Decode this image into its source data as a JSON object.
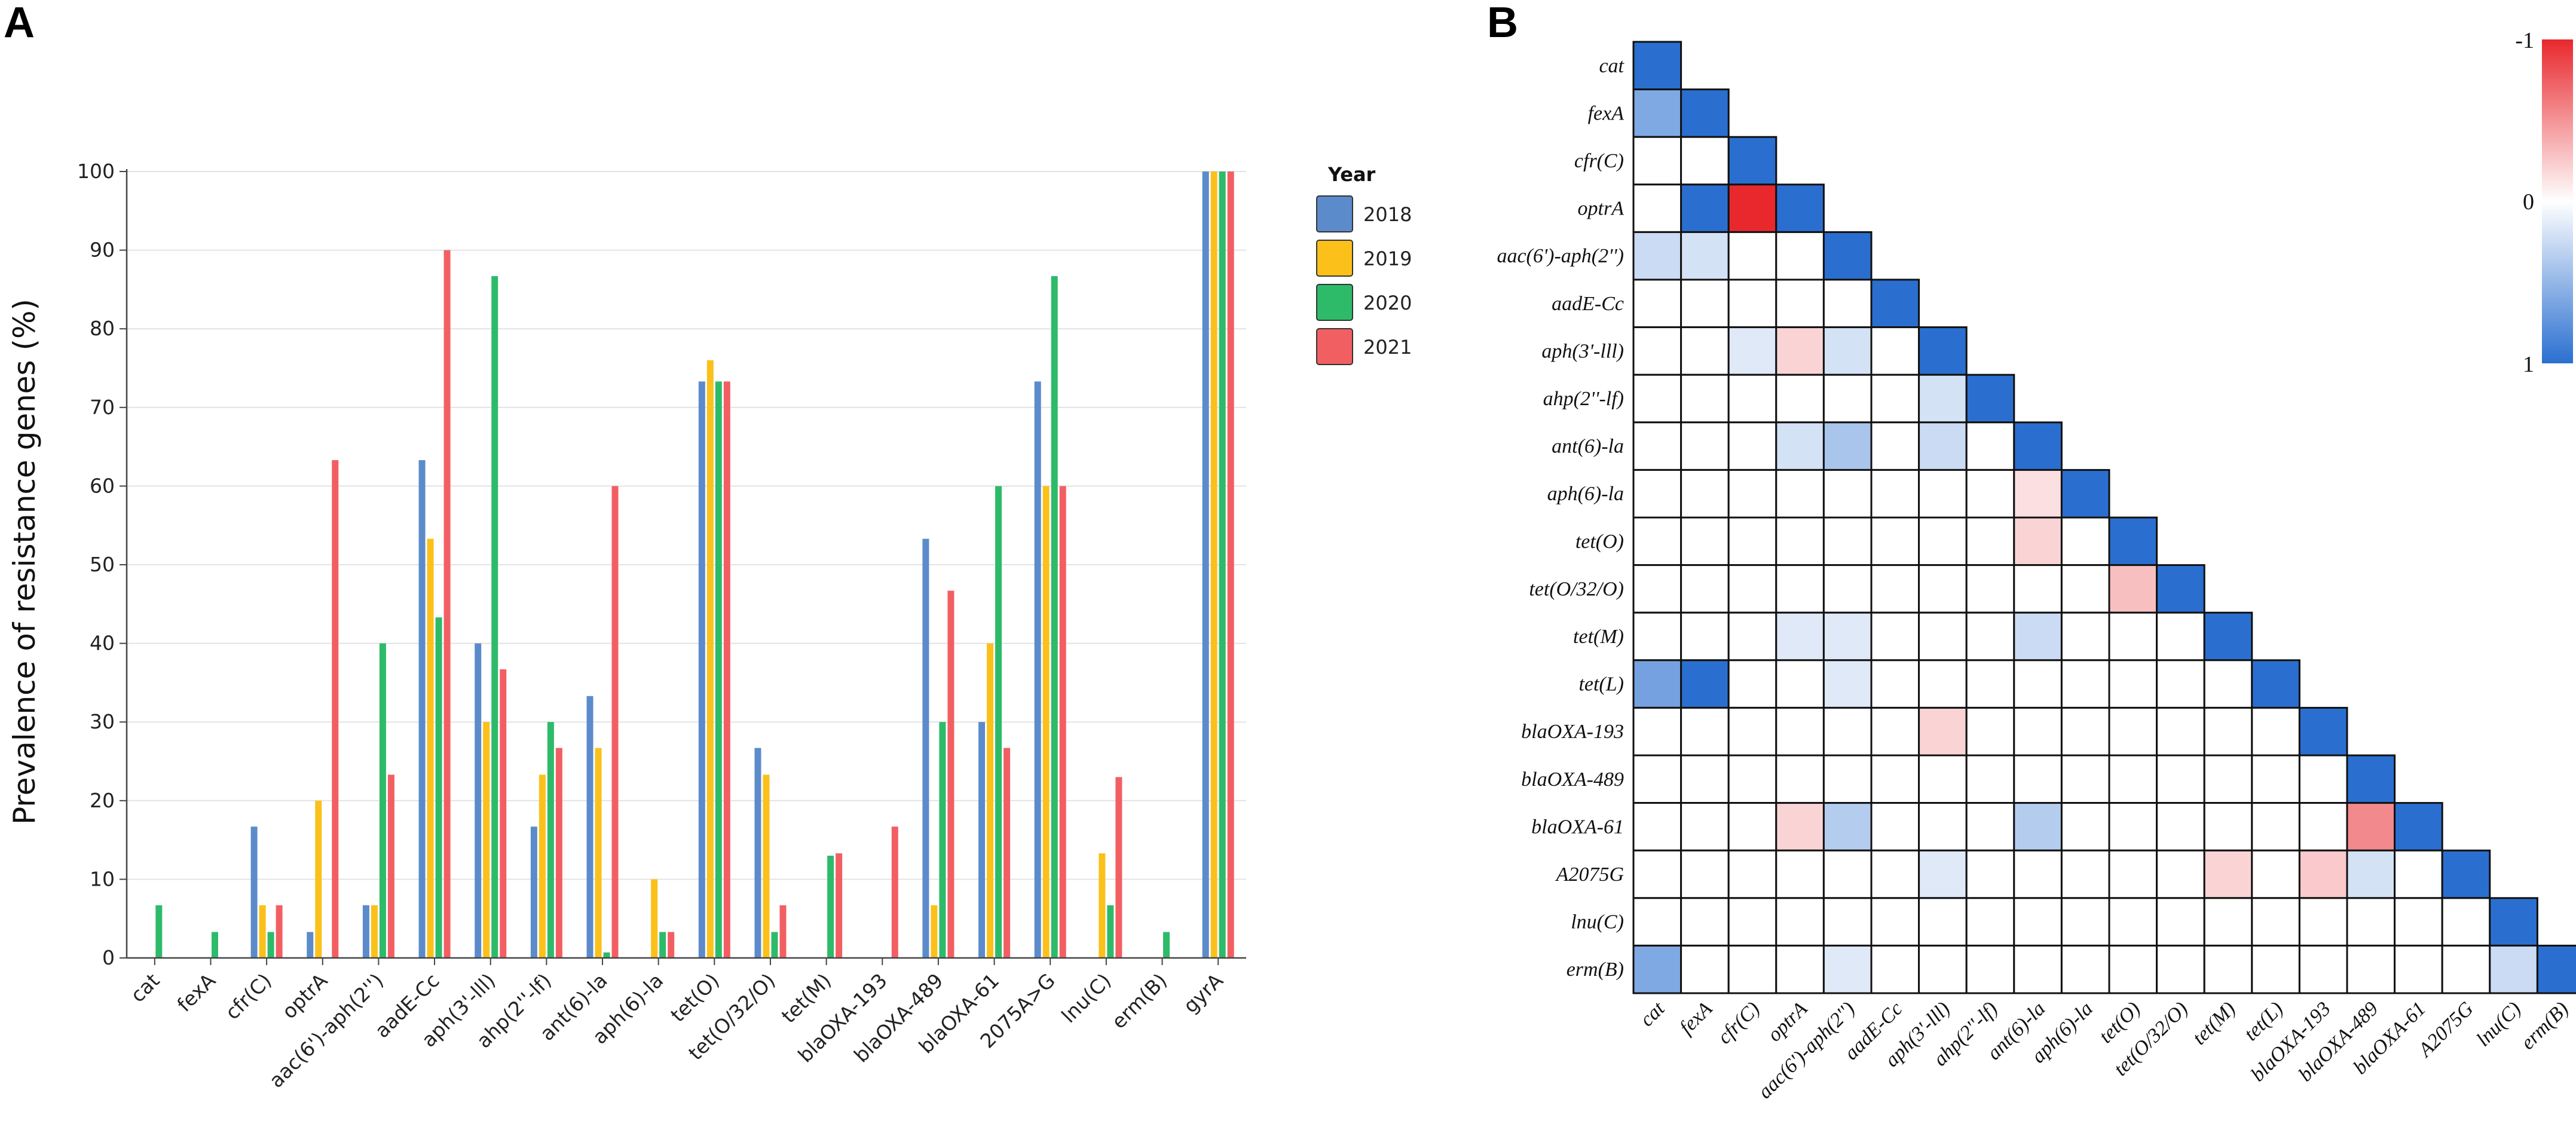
{
  "panelA": {
    "label": "A",
    "chart_data": {
      "type": "bar",
      "title": "",
      "xlabel": "",
      "ylabel": "Prevalence of resistance genes (%)",
      "ylim": [
        0,
        100
      ],
      "yticks": [
        0,
        10,
        20,
        30,
        40,
        50,
        60,
        70,
        80,
        90,
        100
      ],
      "grid": true,
      "legend_title": "Year",
      "legend_position": "right",
      "categories": [
        "cat",
        "fexA",
        "cfr(C)",
        "optrA",
        "aac(6')-aph(2'')",
        "aadE-Cc",
        "aph(3'-lll)",
        "ahp(2''-lf)",
        "ant(6)-la",
        "aph(6)-la",
        "tet(O)",
        "tet(O/32/O)",
        "tet(M)",
        "blaOXA-193",
        "blaOXA-489",
        "blaOXA-61",
        "2075A>G",
        "lnu(C)",
        "erm(B)",
        "gyrA"
      ],
      "series": [
        {
          "name": "2018",
          "color": "#5b8bcb",
          "values": [
            0,
            0,
            16.7,
            3.3,
            6.7,
            63.3,
            40,
            16.7,
            33.3,
            0,
            73.3,
            26.7,
            0,
            0,
            53.3,
            30,
            73.3,
            0,
            0,
            100
          ]
        },
        {
          "name": "2019",
          "color": "#fbc01a",
          "values": [
            0,
            0,
            6.7,
            20,
            6.7,
            53.3,
            30,
            23.3,
            26.7,
            10,
            76,
            23.3,
            0,
            0,
            6.7,
            40,
            60,
            13.3,
            0,
            100
          ]
        },
        {
          "name": "2020",
          "color": "#2dbb6a",
          "values": [
            6.7,
            3.3,
            3.3,
            0,
            40,
            43.3,
            86.7,
            30,
            0.7,
            3.3,
            73.3,
            3.3,
            13,
            0,
            30,
            60,
            86.7,
            6.7,
            3.3,
            100
          ]
        },
        {
          "name": "2021",
          "color": "#f25f63",
          "values": [
            0,
            0,
            6.7,
            63.3,
            23.3,
            90,
            36.7,
            26.7,
            60,
            3.3,
            73.3,
            6.7,
            13.3,
            16.7,
            46.7,
            26.7,
            60,
            23,
            0,
            100
          ]
        }
      ]
    }
  },
  "panelB": {
    "label": "B",
    "chart_data": {
      "type": "heatmap",
      "title": "",
      "shape": "lower-triangular correlation matrix",
      "labels": [
        "cat",
        "fexA",
        "cfr(C)",
        "optrA",
        "aac(6')-aph(2'')",
        "aadE-Cc",
        "aph(3'-lll)",
        "ahp(2''-lf)",
        "ant(6)-la",
        "aph(6)-la",
        "tet(O)",
        "tet(O/32/O)",
        "tet(M)",
        "tet(L)",
        "blaOXA-193",
        "blaOXA-489",
        "blaOXA-61",
        "A2075G",
        "lnu(C)",
        "erm(B)"
      ],
      "colorbar": {
        "min_label": "-1",
        "mid_label": "0",
        "max_label": "1",
        "top_color": "#e8282d",
        "mid_color": "#ffffff",
        "bottom_color": "#2a6fd0"
      },
      "cells": [
        {
          "row": 0,
          "col": 0,
          "value": 1
        },
        {
          "row": 1,
          "col": 0,
          "value": 0.6
        },
        {
          "row": 1,
          "col": 1,
          "value": 1
        },
        {
          "row": 2,
          "col": 2,
          "value": 1
        },
        {
          "row": 3,
          "col": 1,
          "value": 1
        },
        {
          "row": 3,
          "col": 2,
          "value": -1
        },
        {
          "row": 3,
          "col": 3,
          "value": 1
        },
        {
          "row": 4,
          "col": 0,
          "value": 0.25
        },
        {
          "row": 4,
          "col": 1,
          "value": 0.2
        },
        {
          "row": 4,
          "col": 4,
          "value": 1
        },
        {
          "row": 5,
          "col": 5,
          "value": 1
        },
        {
          "row": 6,
          "col": 2,
          "value": 0.15
        },
        {
          "row": 6,
          "col": 3,
          "value": -0.2
        },
        {
          "row": 6,
          "col": 4,
          "value": 0.2
        },
        {
          "row": 6,
          "col": 6,
          "value": 1
        },
        {
          "row": 7,
          "col": 6,
          "value": 0.2
        },
        {
          "row": 7,
          "col": 7,
          "value": 1
        },
        {
          "row": 8,
          "col": 3,
          "value": 0.2
        },
        {
          "row": 8,
          "col": 4,
          "value": 0.4
        },
        {
          "row": 8,
          "col": 6,
          "value": 0.25
        },
        {
          "row": 8,
          "col": 8,
          "value": 1
        },
        {
          "row": 9,
          "col": 8,
          "value": -0.15
        },
        {
          "row": 9,
          "col": 9,
          "value": 1
        },
        {
          "row": 10,
          "col": 8,
          "value": -0.2
        },
        {
          "row": 10,
          "col": 10,
          "value": 1
        },
        {
          "row": 11,
          "col": 10,
          "value": -0.3
        },
        {
          "row": 11,
          "col": 11,
          "value": 1
        },
        {
          "row": 12,
          "col": 3,
          "value": 0.15
        },
        {
          "row": 12,
          "col": 4,
          "value": 0.15
        },
        {
          "row": 12,
          "col": 8,
          "value": 0.25
        },
        {
          "row": 12,
          "col": 12,
          "value": 1
        },
        {
          "row": 13,
          "col": 0,
          "value": 0.65
        },
        {
          "row": 13,
          "col": 1,
          "value": 1
        },
        {
          "row": 13,
          "col": 4,
          "value": 0.15
        },
        {
          "row": 13,
          "col": 13,
          "value": 1
        },
        {
          "row": 14,
          "col": 6,
          "value": -0.2
        },
        {
          "row": 14,
          "col": 14,
          "value": 1
        },
        {
          "row": 15,
          "col": 15,
          "value": 1
        },
        {
          "row": 16,
          "col": 3,
          "value": -0.2
        },
        {
          "row": 16,
          "col": 4,
          "value": 0.35
        },
        {
          "row": 16,
          "col": 8,
          "value": 0.35
        },
        {
          "row": 16,
          "col": 15,
          "value": -0.55
        },
        {
          "row": 16,
          "col": 16,
          "value": 1
        },
        {
          "row": 17,
          "col": 6,
          "value": 0.15
        },
        {
          "row": 17,
          "col": 12,
          "value": -0.2
        },
        {
          "row": 17,
          "col": 14,
          "value": -0.25
        },
        {
          "row": 17,
          "col": 15,
          "value": 0.2
        },
        {
          "row": 17,
          "col": 17,
          "value": 1
        },
        {
          "row": 18,
          "col": 18,
          "value": 1
        },
        {
          "row": 19,
          "col": 0,
          "value": 0.6
        },
        {
          "row": 19,
          "col": 4,
          "value": 0.15
        },
        {
          "row": 19,
          "col": 18,
          "value": 0.25
        },
        {
          "row": 19,
          "col": 19,
          "value": 1
        }
      ]
    }
  }
}
